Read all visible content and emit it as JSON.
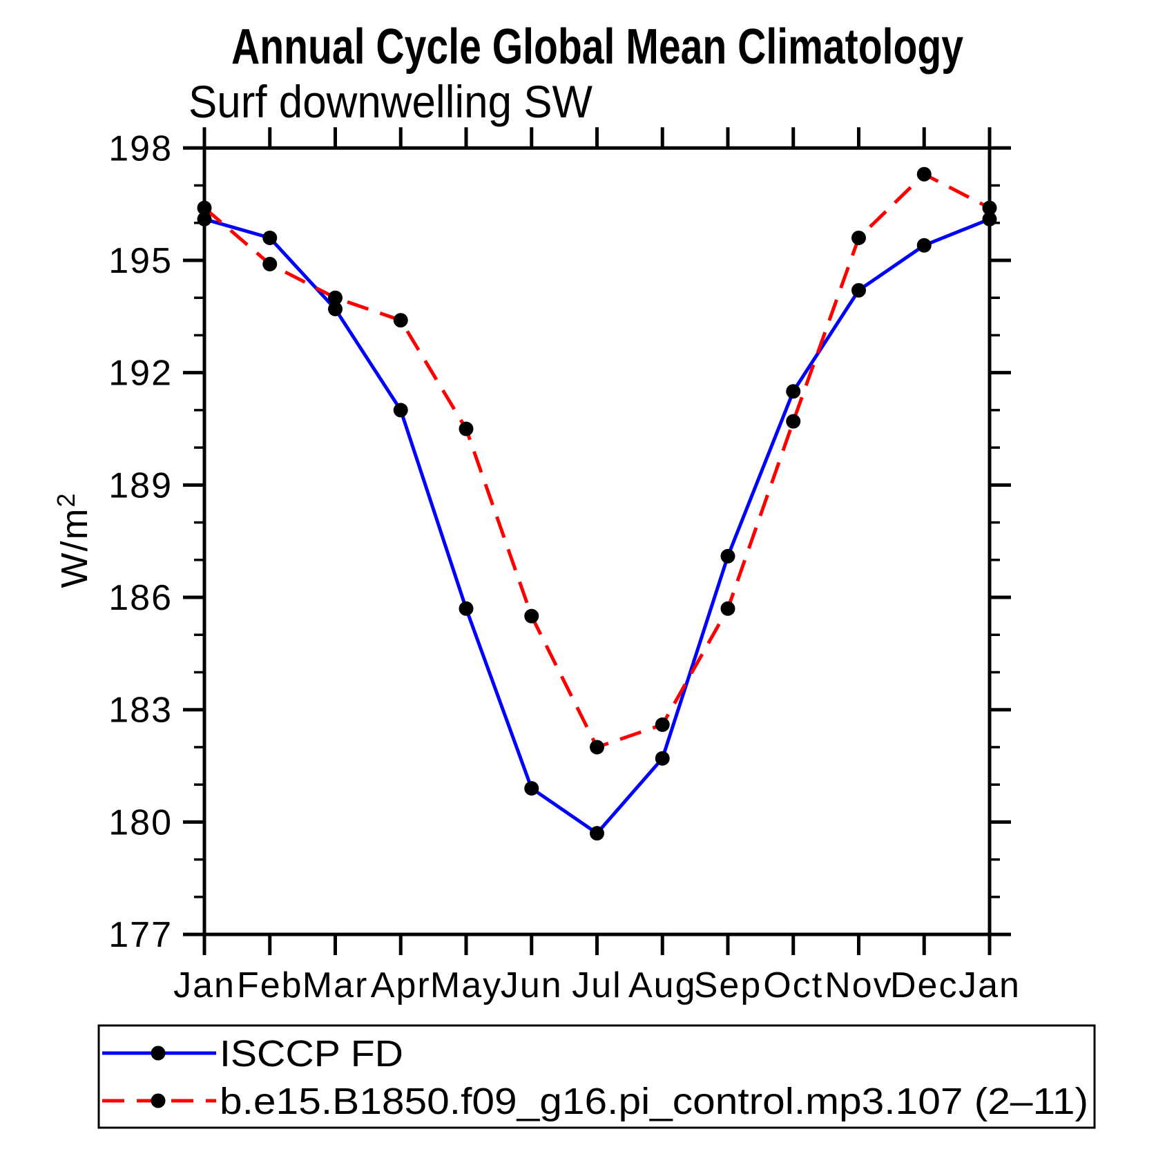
{
  "chart_data": {
    "type": "line",
    "title": "Annual Cycle Global Mean Climatology",
    "subtitle": "Surf downwelling SW",
    "ylabel": "W/m²",
    "ylabel_base": "W/m",
    "ylabel_exponent": "2",
    "x_categories": [
      "Jan",
      "Feb",
      "Mar",
      "Apr",
      "May",
      "Jun",
      "Jul",
      "Aug",
      "Sep",
      "Oct",
      "Nov",
      "Dec",
      "Jan"
    ],
    "ylim": [
      177,
      198
    ],
    "y_major_ticks": [
      177,
      180,
      183,
      186,
      189,
      192,
      195,
      198
    ],
    "y_minor_tick_step": 1,
    "grid": false,
    "legend_position": "bottom-left-box",
    "series": [
      {
        "name": "ISCCP FD",
        "line_color": "#0000ff",
        "line_style": "solid",
        "marker": "filled-circle",
        "marker_color": "#000000",
        "values": [
          196.1,
          195.6,
          193.7,
          191.0,
          185.7,
          180.9,
          179.7,
          181.7,
          187.1,
          191.5,
          194.2,
          195.4,
          196.1
        ]
      },
      {
        "name": "b.e15.B1850.f09_g16.pi_control.mp3.107 (2–11)",
        "line_color": "#ff0000",
        "line_style": "dashed",
        "marker": "filled-circle",
        "marker_color": "#000000",
        "values": [
          196.4,
          194.9,
          194.0,
          193.4,
          190.5,
          185.5,
          182.0,
          182.6,
          185.7,
          190.7,
          195.6,
          197.3,
          196.4
        ]
      }
    ]
  }
}
